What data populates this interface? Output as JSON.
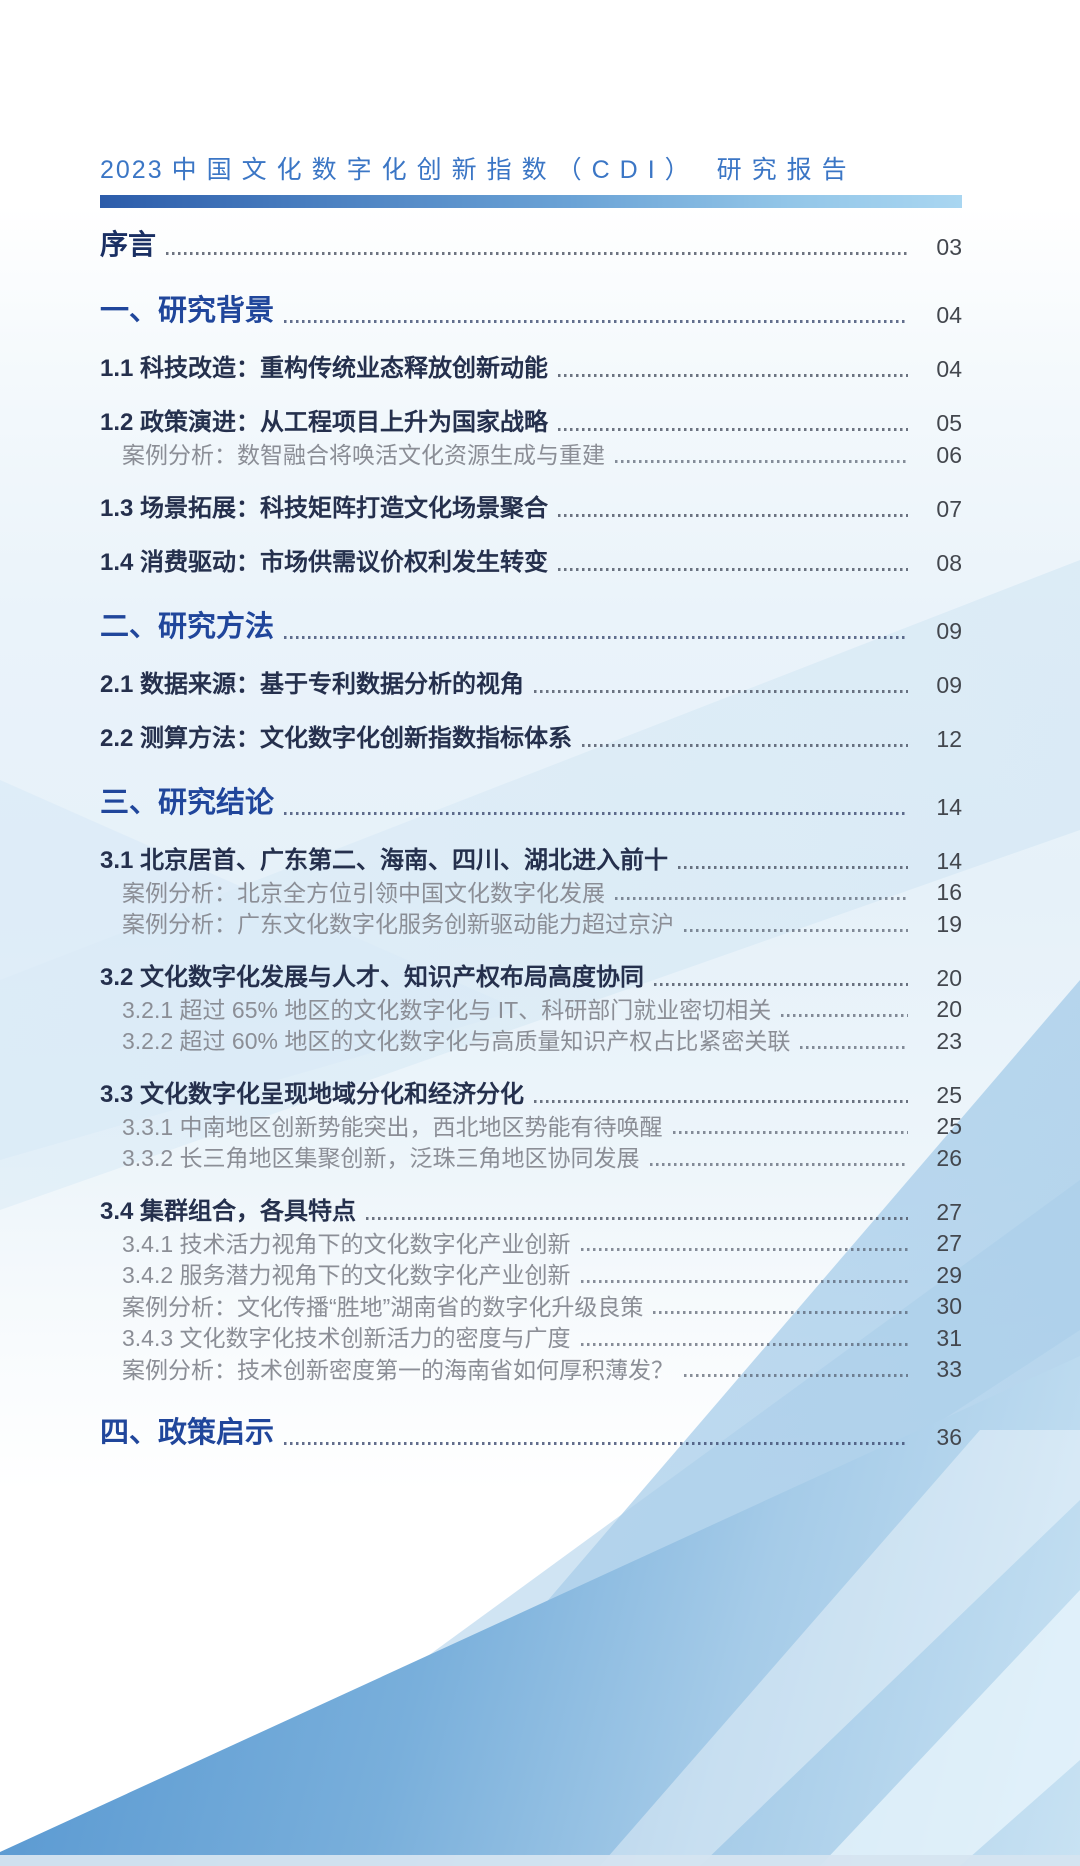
{
  "header": {
    "title_year": "2023",
    "title_main": "中国文化数字化创新指数（CDI） 研究报告"
  },
  "colors": {
    "title_blue": "#3b76c5",
    "chapter_blue": "#20469b",
    "section_navy": "#25304d",
    "sub_gray": "#8b8e96",
    "accent_bar_start": "#2c5caa",
    "accent_bar_end": "#a9d6f1",
    "band_blue": "#5b9ad2"
  },
  "toc": {
    "items": [
      {
        "label": "序言",
        "page": "03",
        "level": "preface"
      },
      {
        "label": "一、研究背景",
        "page": "04",
        "level": "chapter"
      },
      {
        "label": "1.1 科技改造：重构传统业态释放创新动能",
        "page": "04",
        "level": "section"
      },
      {
        "label": "1.2 政策演进：从工程项目上升为国家战略",
        "page": "05",
        "level": "section"
      },
      {
        "label": "案例分析：数智融合将唤活文化资源生成与重建",
        "page": "06",
        "level": "sub"
      },
      {
        "label": "1.3 场景拓展：科技矩阵打造文化场景聚合",
        "page": "07",
        "level": "section"
      },
      {
        "label": "1.4 消费驱动：市场供需议价权利发生转变",
        "page": "08",
        "level": "section"
      },
      {
        "label": "二、研究方法",
        "page": "09",
        "level": "chapter"
      },
      {
        "label": "2.1 数据来源：基于专利数据分析的视角",
        "page": "09",
        "level": "section"
      },
      {
        "label": "2.2 测算方法：文化数字化创新指数指标体系",
        "page": "12",
        "level": "section"
      },
      {
        "label": "三、研究结论",
        "page": "14",
        "level": "chapter"
      },
      {
        "label": "3.1 北京居首、广东第二、海南、四川、湖北进入前十",
        "page": "14",
        "level": "section"
      },
      {
        "label": "案例分析：北京全方位引领中国文化数字化发展",
        "page": "16",
        "level": "sub"
      },
      {
        "label": "案例分析：广东文化数字化服务创新驱动能力超过京沪",
        "page": "19",
        "level": "sub"
      },
      {
        "label": "3.2 文化数字化发展与人才、知识产权布局高度协同",
        "page": "20",
        "level": "section"
      },
      {
        "label": "3.2.1 超过 65% 地区的文化数字化与 IT、科研部门就业密切相关",
        "page": "20",
        "level": "sub"
      },
      {
        "label": "3.2.2 超过 60% 地区的文化数字化与高质量知识产权占比紧密关联",
        "page": "23",
        "level": "sub"
      },
      {
        "label": "3.3 文化数字化呈现地域分化和经济分化",
        "page": "25",
        "level": "section"
      },
      {
        "label": "3.3.1 中南地区创新势能突出，西北地区势能有待唤醒",
        "page": "25",
        "level": "sub"
      },
      {
        "label": "3.3.2 长三角地区集聚创新，泛珠三角地区协同发展",
        "page": "26",
        "level": "sub"
      },
      {
        "label": "3.4 集群组合，各具特点",
        "page": "27",
        "level": "section"
      },
      {
        "label": "3.4.1 技术活力视角下的文化数字化产业创新",
        "page": "27",
        "level": "sub"
      },
      {
        "label": "3.4.2 服务潜力视角下的文化数字化产业创新",
        "page": "29",
        "level": "sub"
      },
      {
        "label": "案例分析：文化传播“胜地”湖南省的数字化升级良策",
        "page": "30",
        "level": "sub"
      },
      {
        "label": "3.4.3 文化数字化技术创新活力的密度与广度",
        "page": "31",
        "level": "sub"
      },
      {
        "label": "案例分析：技术创新密度第一的海南省如何厚积薄发？",
        "page": "33",
        "level": "sub"
      },
      {
        "label": "四、政策启示",
        "page": "36",
        "level": "chapter"
      }
    ]
  }
}
